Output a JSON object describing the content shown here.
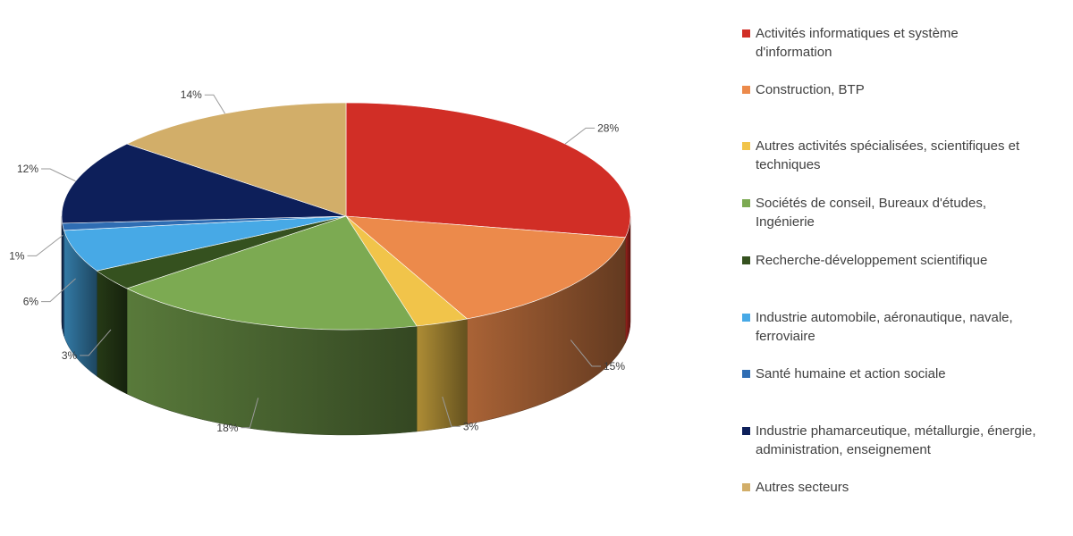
{
  "chart_data": {
    "type": "pie",
    "style": "3d",
    "legend_position": "right",
    "categories": [
      "Activités informatiques et système\nd'information",
      "Construction, BTP",
      "Autres activités spécialisées, scientifiques et\ntechniques",
      "Sociétés de conseil, Bureaux d'études,\nIngénierie",
      "Recherche-développement scientifique",
      "Industrie automobile, aéronautique, navale,\nferroviaire",
      "Santé humaine et action sociale",
      "Industrie phamarceutique, métallurgie, énergie,\nadministration, enseignement",
      "Autres secteurs"
    ],
    "values": [
      28,
      15,
      3,
      18,
      3,
      6,
      1,
      12,
      14
    ],
    "labels": [
      "28%",
      "15%",
      "3%",
      "18%",
      "3%",
      "6%",
      "1%",
      "12%",
      "14%"
    ],
    "colors": [
      "#d12e26",
      "#ec8a4b",
      "#f1c44a",
      "#7caa52",
      "#35511f",
      "#47a9e6",
      "#2f6db3",
      "#0d1f5a",
      "#d2ae69"
    ]
  }
}
